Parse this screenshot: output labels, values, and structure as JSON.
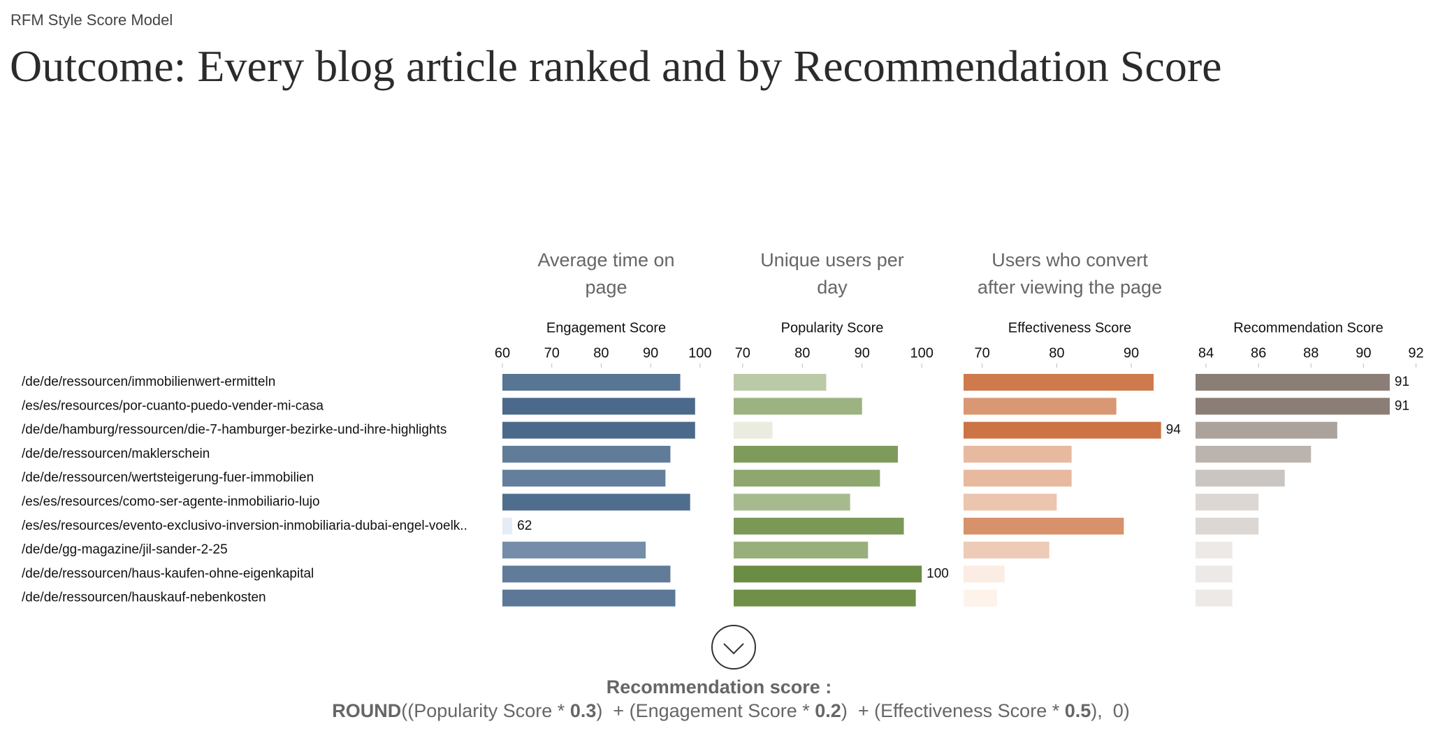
{
  "header": {
    "kicker": "RFM Style Score Model",
    "title": "Outcome: Every blog article ranked and by Recommendation Score"
  },
  "chart_data": [
    {
      "type": "bar",
      "description": [
        "Average time on",
        "page"
      ],
      "axis_title": "Engagement Score",
      "categories": [
        "/de/de/ressourcen/immobilienwert-ermitteln",
        "/es/es/resources/por-cuanto-puedo-vender-mi-casa",
        "/de/de/hamburg/ressourcen/die-7-hamburger-bezirke-und-ihre-highlights",
        "/de/de/ressourcen/maklerschein",
        "/de/de/ressourcen/wertsteigerung-fuer-immobilien",
        "/es/es/resources/como-ser-agente-inmobiliario-lujo",
        "/es/es/resources/evento-exclusivo-inversion-inmobiliaria-dubai-engel-voelk..",
        "/de/de/gg-magazine/jil-sander-2-25",
        "/de/de/ressourcen/haus-kaufen-ohne-eigenkapital",
        "/de/de/ressourcen/hauskauf-nebenkosten"
      ],
      "values": [
        96,
        99,
        99,
        94,
        93,
        98,
        62,
        89,
        94,
        95
      ],
      "xlim": [
        60,
        102
      ],
      "xticks": [
        60,
        70,
        80,
        90,
        100
      ],
      "color_range": [
        "#e6ecf5",
        "#4b6a8b"
      ],
      "label_rule": "min"
    },
    {
      "type": "bar",
      "description": [
        "Unique users per",
        "day"
      ],
      "axis_title": "Popularity Score",
      "values": [
        84,
        90,
        75,
        96,
        93,
        88,
        97,
        91,
        100,
        99
      ],
      "xlim": [
        68.5,
        101.5
      ],
      "xticks": [
        70,
        80,
        90,
        100
      ],
      "color_range": [
        "#e9ecdf",
        "#6b8c43"
      ],
      "label_rule": "max"
    },
    {
      "type": "bar",
      "description": [
        "Users who convert",
        "after viewing the page"
      ],
      "axis_title": "Effectiveness Score",
      "values": [
        93,
        88,
        94,
        82,
        82,
        80,
        89,
        79,
        73,
        72
      ],
      "xlim": [
        67.5,
        96
      ],
      "xticks": [
        70,
        80,
        90
      ],
      "color_range": [
        "#fdf3ea",
        "#cc7446"
      ],
      "label_rule": "max"
    },
    {
      "type": "bar",
      "axis_title": "Recommendation Score",
      "values": [
        91,
        91,
        89,
        88,
        87,
        86,
        86,
        85,
        85,
        85
      ],
      "xlim": [
        83.6,
        92.2
      ],
      "xticks": [
        84,
        86,
        88,
        90,
        92
      ],
      "color_range": [
        "#ece9e6",
        "#8a7e76"
      ],
      "label_rule": "max"
    }
  ],
  "footer": {
    "formula_title": "Recommendation score :",
    "formula": [
      {
        "text": "ROUND",
        "bold": true
      },
      {
        "text": "((Popularity Score * ",
        "bold": false
      },
      {
        "text": "0.3",
        "bold": true
      },
      {
        "text": ")  + (Engagement Score * ",
        "bold": false
      },
      {
        "text": "0.2",
        "bold": true
      },
      {
        "text": ")  + (Effectiveness Score * ",
        "bold": false
      },
      {
        "text": "0.5",
        "bold": true
      },
      {
        "text": "),  0)",
        "bold": false
      }
    ]
  }
}
